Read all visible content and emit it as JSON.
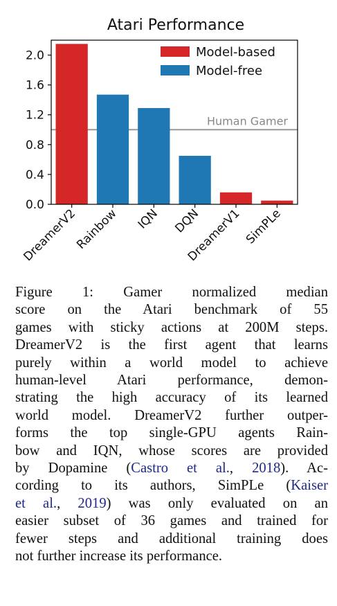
{
  "chart_data": {
    "type": "bar",
    "title": "Atari Performance",
    "categories": [
      "DreamerV2",
      "Rainbow",
      "IQN",
      "DQN",
      "DreamerV1",
      "SimPLe"
    ],
    "values": [
      2.15,
      1.47,
      1.29,
      0.65,
      0.16,
      0.05
    ],
    "groups": [
      "Model-based",
      "Model-free",
      "Model-free",
      "Model-free",
      "Model-based",
      "Model-based"
    ],
    "legend": [
      {
        "name": "Model-based",
        "color": "#d62728"
      },
      {
        "name": "Model-free",
        "color": "#1f77b4"
      }
    ],
    "legend_position": "top-right",
    "yticks": [
      "0.0",
      "0.4",
      "0.8",
      "1.2",
      "1.6",
      "2.0"
    ],
    "ylim": [
      0,
      2.2
    ],
    "reference_line": {
      "label": "Human Gamer",
      "value": 1.0,
      "color": "#999999"
    },
    "grid": false
  },
  "caption": {
    "lines": [
      {
        "parts": [
          {
            "t": "Figure 1:  Gamer normalized median"
          }
        ]
      },
      {
        "parts": [
          {
            "t": "score on the Atari benchmark of 55"
          }
        ]
      },
      {
        "parts": [
          {
            "t": "games with sticky actions at 200M steps."
          }
        ]
      },
      {
        "parts": [
          {
            "t": "DreamerV2 is the first agent that learns"
          }
        ]
      },
      {
        "parts": [
          {
            "t": "purely within a world model to achieve"
          }
        ]
      },
      {
        "parts": [
          {
            "t": "human-level Atari performance, demon-"
          }
        ]
      },
      {
        "parts": [
          {
            "t": "strating the high accuracy of its learned"
          }
        ]
      },
      {
        "parts": [
          {
            "t": "world model. DreamerV2 further outper-"
          }
        ]
      },
      {
        "parts": [
          {
            "t": "forms the top single-GPU agents Rain-"
          }
        ]
      },
      {
        "parts": [
          {
            "t": "bow and IQN, whose scores are provided"
          }
        ]
      },
      {
        "parts": [
          {
            "t": "by Dopamine ("
          },
          {
            "t": "Castro et al.",
            "cite": true
          },
          {
            "t": ", "
          },
          {
            "t": "2018",
            "cite": true
          },
          {
            "t": "). Ac-"
          }
        ]
      },
      {
        "parts": [
          {
            "t": "cording to its authors, SimPLe ("
          },
          {
            "t": "Kaiser",
            "cite": true
          }
        ]
      },
      {
        "parts": [
          {
            "t": "et al.",
            "cite": true
          },
          {
            "t": ", "
          },
          {
            "t": "2019",
            "cite": true
          },
          {
            "t": ") was only evaluated on an"
          }
        ]
      },
      {
        "parts": [
          {
            "t": "easier subset of 36 games and trained for"
          }
        ]
      },
      {
        "parts": [
          {
            "t": "fewer steps and additional training does"
          }
        ]
      },
      {
        "parts": [
          {
            "t": "not further increase its performance."
          }
        ]
      }
    ]
  }
}
